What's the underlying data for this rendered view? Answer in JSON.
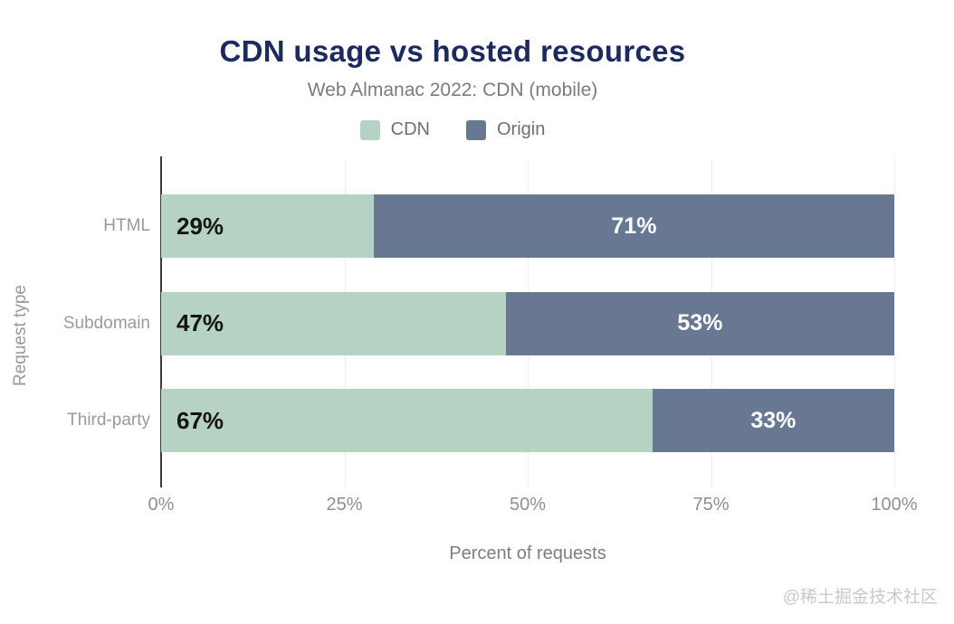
{
  "page": {
    "watermark": "@稀土掘金技术社区"
  },
  "chart_data": {
    "type": "bar",
    "orientation": "horizontal",
    "stacked": true,
    "title": "CDN usage vs hosted resources",
    "subtitle": "Web Almanac 2022: CDN (mobile)",
    "categories": [
      "HTML",
      "Subdomain",
      "Third-party"
    ],
    "series": [
      {
        "name": "CDN",
        "color": "#b6d2c2",
        "values": [
          29,
          47,
          67
        ],
        "labels": [
          "29%",
          "47%",
          "67%"
        ]
      },
      {
        "name": "Origin",
        "color": "#687893",
        "values": [
          71,
          53,
          33
        ],
        "labels": [
          "71%",
          "53%",
          "33%"
        ]
      }
    ],
    "xlabel": "Percent of requests",
    "ylabel": "Request type",
    "xlim": [
      0,
      100
    ],
    "xticks": [
      "0%",
      "25%",
      "50%",
      "75%",
      "100%"
    ],
    "legend_position": "top",
    "grid": true,
    "colors": {
      "title": "#1c2a5e",
      "subtitle": "#7b7b7b",
      "legend_text": "#6f6f6f",
      "category_label": "#9a9a9a",
      "tick_label": "#8f8f8f",
      "axis_label": "#7e7e7e",
      "ylabel": "#9a9a9a",
      "value_on_cdn": "#141414",
      "value_on_origin": "#ffffff",
      "axis_line": "#3c3c3c",
      "gridline": "#ededed",
      "watermark": "#c9c9c9"
    }
  }
}
